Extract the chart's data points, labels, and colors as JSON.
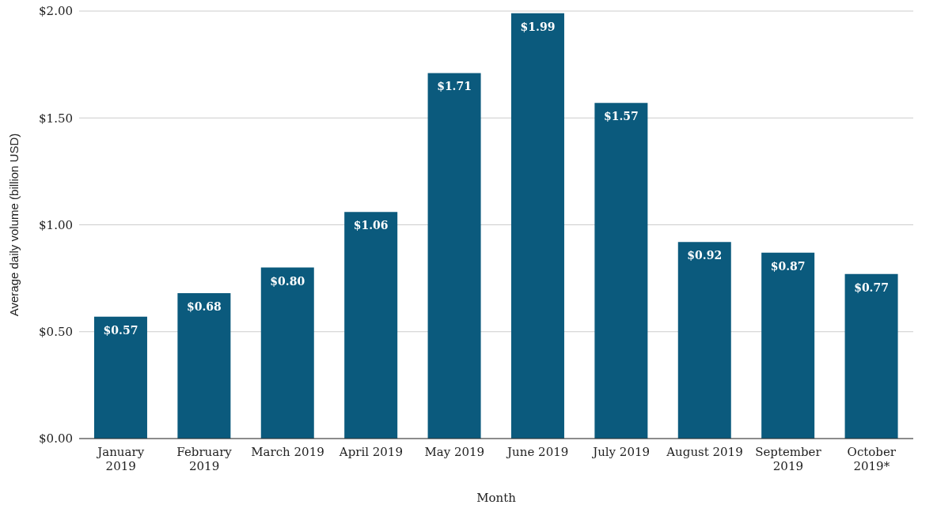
{
  "chart_data": {
    "type": "bar",
    "xlabel": "Month",
    "ylabel": "Average daily volume (billion USD)",
    "categories": [
      "January 2019",
      "February 2019",
      "March 2019",
      "April 2019",
      "May 2019",
      "June 2019",
      "July 2019",
      "August 2019",
      "September 2019",
      "October 2019*"
    ],
    "values": [
      0.57,
      0.68,
      0.8,
      1.06,
      1.71,
      1.99,
      1.57,
      0.92,
      0.87,
      0.77
    ],
    "value_labels": [
      "$0.57",
      "$0.68",
      "$0.80",
      "$1.06",
      "$1.71",
      "$1.99",
      "$1.57",
      "$0.92",
      "$0.87",
      "$0.77"
    ],
    "color": "#0b5a7d",
    "ylim": [
      0,
      2
    ],
    "yticks": [
      {
        "value": 0,
        "label": "$0.00"
      },
      {
        "value": 0.5,
        "label": "$0.50"
      },
      {
        "value": 1,
        "label": "$1.00"
      },
      {
        "value": 1.5,
        "label": "$1.50"
      },
      {
        "value": 2,
        "label": "$2.00"
      }
    ],
    "grid": "y"
  }
}
